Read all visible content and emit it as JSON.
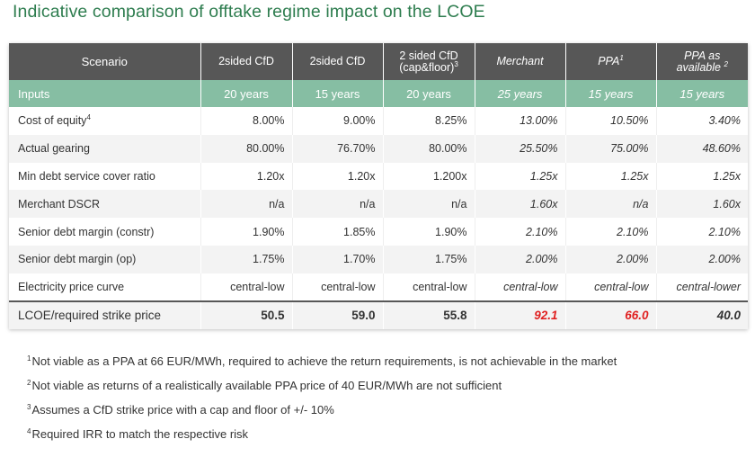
{
  "title": "Indicative comparison of offtake regime impact on the LCOE",
  "header": {
    "scenario": "Scenario",
    "columns": [
      {
        "label": "2sided CfD",
        "sup": "",
        "italic": false
      },
      {
        "label": "2sided CfD",
        "sup": "",
        "italic": false
      },
      {
        "label": "2 sided CfD",
        "label2": "(cap&floor)",
        "sup": "3",
        "italic": false
      },
      {
        "label": "Merchant",
        "sup": "",
        "italic": true
      },
      {
        "label": "PPA",
        "sup": "1",
        "italic": true
      },
      {
        "label": "PPA as",
        "label2": "available",
        "sup": "2",
        "italic": true
      }
    ]
  },
  "inputs": {
    "label": "Inputs",
    "values": [
      "20 years",
      "15 years",
      "20 years",
      "25 years",
      "15 years",
      "15 years"
    ]
  },
  "rows": [
    {
      "label": "Cost of equity",
      "sup": "4",
      "values": [
        "8.00%",
        "9.00%",
        "8.25%",
        "13.00%",
        "10.50%",
        "3.40%"
      ]
    },
    {
      "label": "Actual gearing",
      "sup": "",
      "values": [
        "80.00%",
        "76.70%",
        "80.00%",
        "25.50%",
        "75.00%",
        "48.60%"
      ]
    },
    {
      "label": "Min debt service cover ratio",
      "sup": "",
      "values": [
        "1.20x",
        "1.20x",
        "1.200x",
        "1.25x",
        "1.25x",
        "1.25x"
      ]
    },
    {
      "label": "Merchant DSCR",
      "sup": "",
      "values": [
        "n/a",
        "n/a",
        "n/a",
        "1.60x",
        "n/a",
        "1.60x"
      ]
    },
    {
      "label": "Senior debt margin (constr)",
      "sup": "",
      "values": [
        "1.90%",
        "1.85%",
        "1.90%",
        "2.10%",
        "2.10%",
        "2.10%"
      ]
    },
    {
      "label": "Senior debt margin (op)",
      "sup": "",
      "values": [
        "1.75%",
        "1.70%",
        "1.75%",
        "2.00%",
        "2.00%",
        "2.00%"
      ]
    },
    {
      "label": "Electricity price curve",
      "sup": "",
      "values": [
        "central-low",
        "central-low",
        "central-low",
        "central-low",
        "central-low",
        "central-lower"
      ]
    }
  ],
  "lcoe": {
    "label": "LCOE/required strike price",
    "values": [
      "50.5",
      "59.0",
      "55.8",
      "92.1",
      "66.0",
      "40.0"
    ]
  },
  "colors": {
    "title": "#2e7d4f",
    "header": "#575757",
    "inputs": "#86bea3",
    "highlight": "#e02020"
  },
  "footnotes": [
    {
      "num": "1",
      "text": "Not viable as a PPA at 66 EUR/MWh, required to achieve the return requirements, is not achievable in the market"
    },
    {
      "num": "2",
      "text": "Not viable as returns of a realistically available PPA price of 40 EUR/MWh are not sufficient"
    },
    {
      "num": "3",
      "text": "Assumes a CfD strike price with a cap and floor of +/- 10%"
    },
    {
      "num": "4",
      "text": "Required IRR to match the respective risk"
    }
  ]
}
